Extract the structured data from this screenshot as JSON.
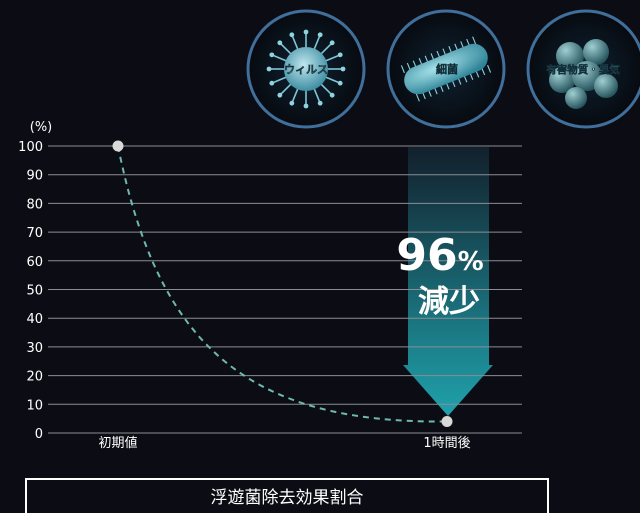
{
  "chart_data": {
    "type": "line",
    "yunit": "(%)",
    "yticks": [
      0,
      10,
      20,
      30,
      40,
      50,
      60,
      70,
      80,
      90,
      100
    ],
    "ylim": [
      0,
      100
    ],
    "categories": [
      "初期値",
      "1時間後"
    ],
    "series": [
      {
        "values": [
          100,
          4
        ]
      }
    ],
    "grid": true,
    "annotation": {
      "value_label": "96",
      "percent_sign": "%",
      "caption": "減少"
    },
    "icons": [
      {
        "label": "ウィルス",
        "icon": "virus-icon"
      },
      {
        "label": "細菌",
        "icon": "bacteria-icon"
      },
      {
        "label": "有害物質・臭気",
        "icon": "molecule-icon"
      }
    ],
    "footer": "浮遊菌除去効果割合",
    "colors": {
      "background": "#0c0d14",
      "curve": "#6fb8b2",
      "arrow_top": "#12202c",
      "arrow_bottom": "#1fa2ac",
      "grid": "#8a8d96",
      "point": "#d9d9d9",
      "icon_ring": "#3f6f9a"
    }
  }
}
